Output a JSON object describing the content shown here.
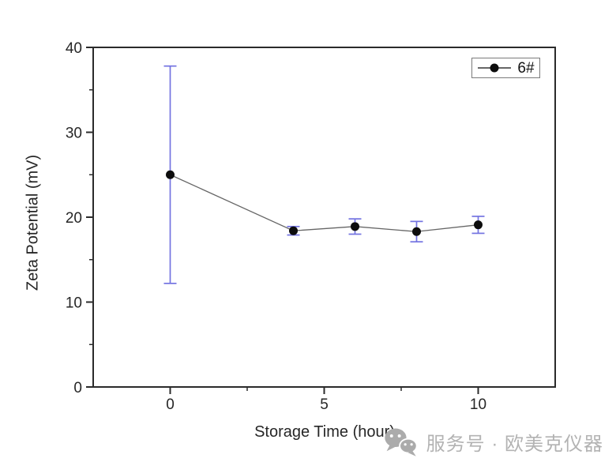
{
  "chart_data": {
    "type": "line",
    "title": "",
    "xlabel": "Storage Time (hour)",
    "ylabel": "Zeta Potential (mV)",
    "xlim": [
      -2.5,
      12.5
    ],
    "ylim": [
      0,
      40
    ],
    "x_major_ticks": [
      0,
      5,
      10
    ],
    "x_minor_ticks": [
      2.5,
      7.5
    ],
    "y_major_ticks": [
      0,
      10,
      20,
      30,
      40
    ],
    "y_minor_ticks": [
      5,
      15,
      25,
      35
    ],
    "grid": false,
    "legend": {
      "position": "top-right",
      "entries": [
        "6#"
      ]
    },
    "series": [
      {
        "name": "6#",
        "x": [
          0,
          4,
          6,
          8,
          10
        ],
        "y": [
          25.0,
          18.4,
          18.9,
          18.3,
          19.1
        ],
        "yerr": [
          12.8,
          0.5,
          0.9,
          1.2,
          1.0
        ],
        "marker": "filled-circle",
        "marker_color": "#0d0d0d",
        "line_color": "#666666",
        "error_color": "#7373e1"
      }
    ]
  },
  "watermark": {
    "icon": "wechat-logo",
    "text": "服务号 · 欧美克仪器",
    "color": "#b3b3b3"
  },
  "colors": {
    "background": "#ffffff",
    "frame": "#2b2b2b",
    "tick_text": "#262626"
  }
}
